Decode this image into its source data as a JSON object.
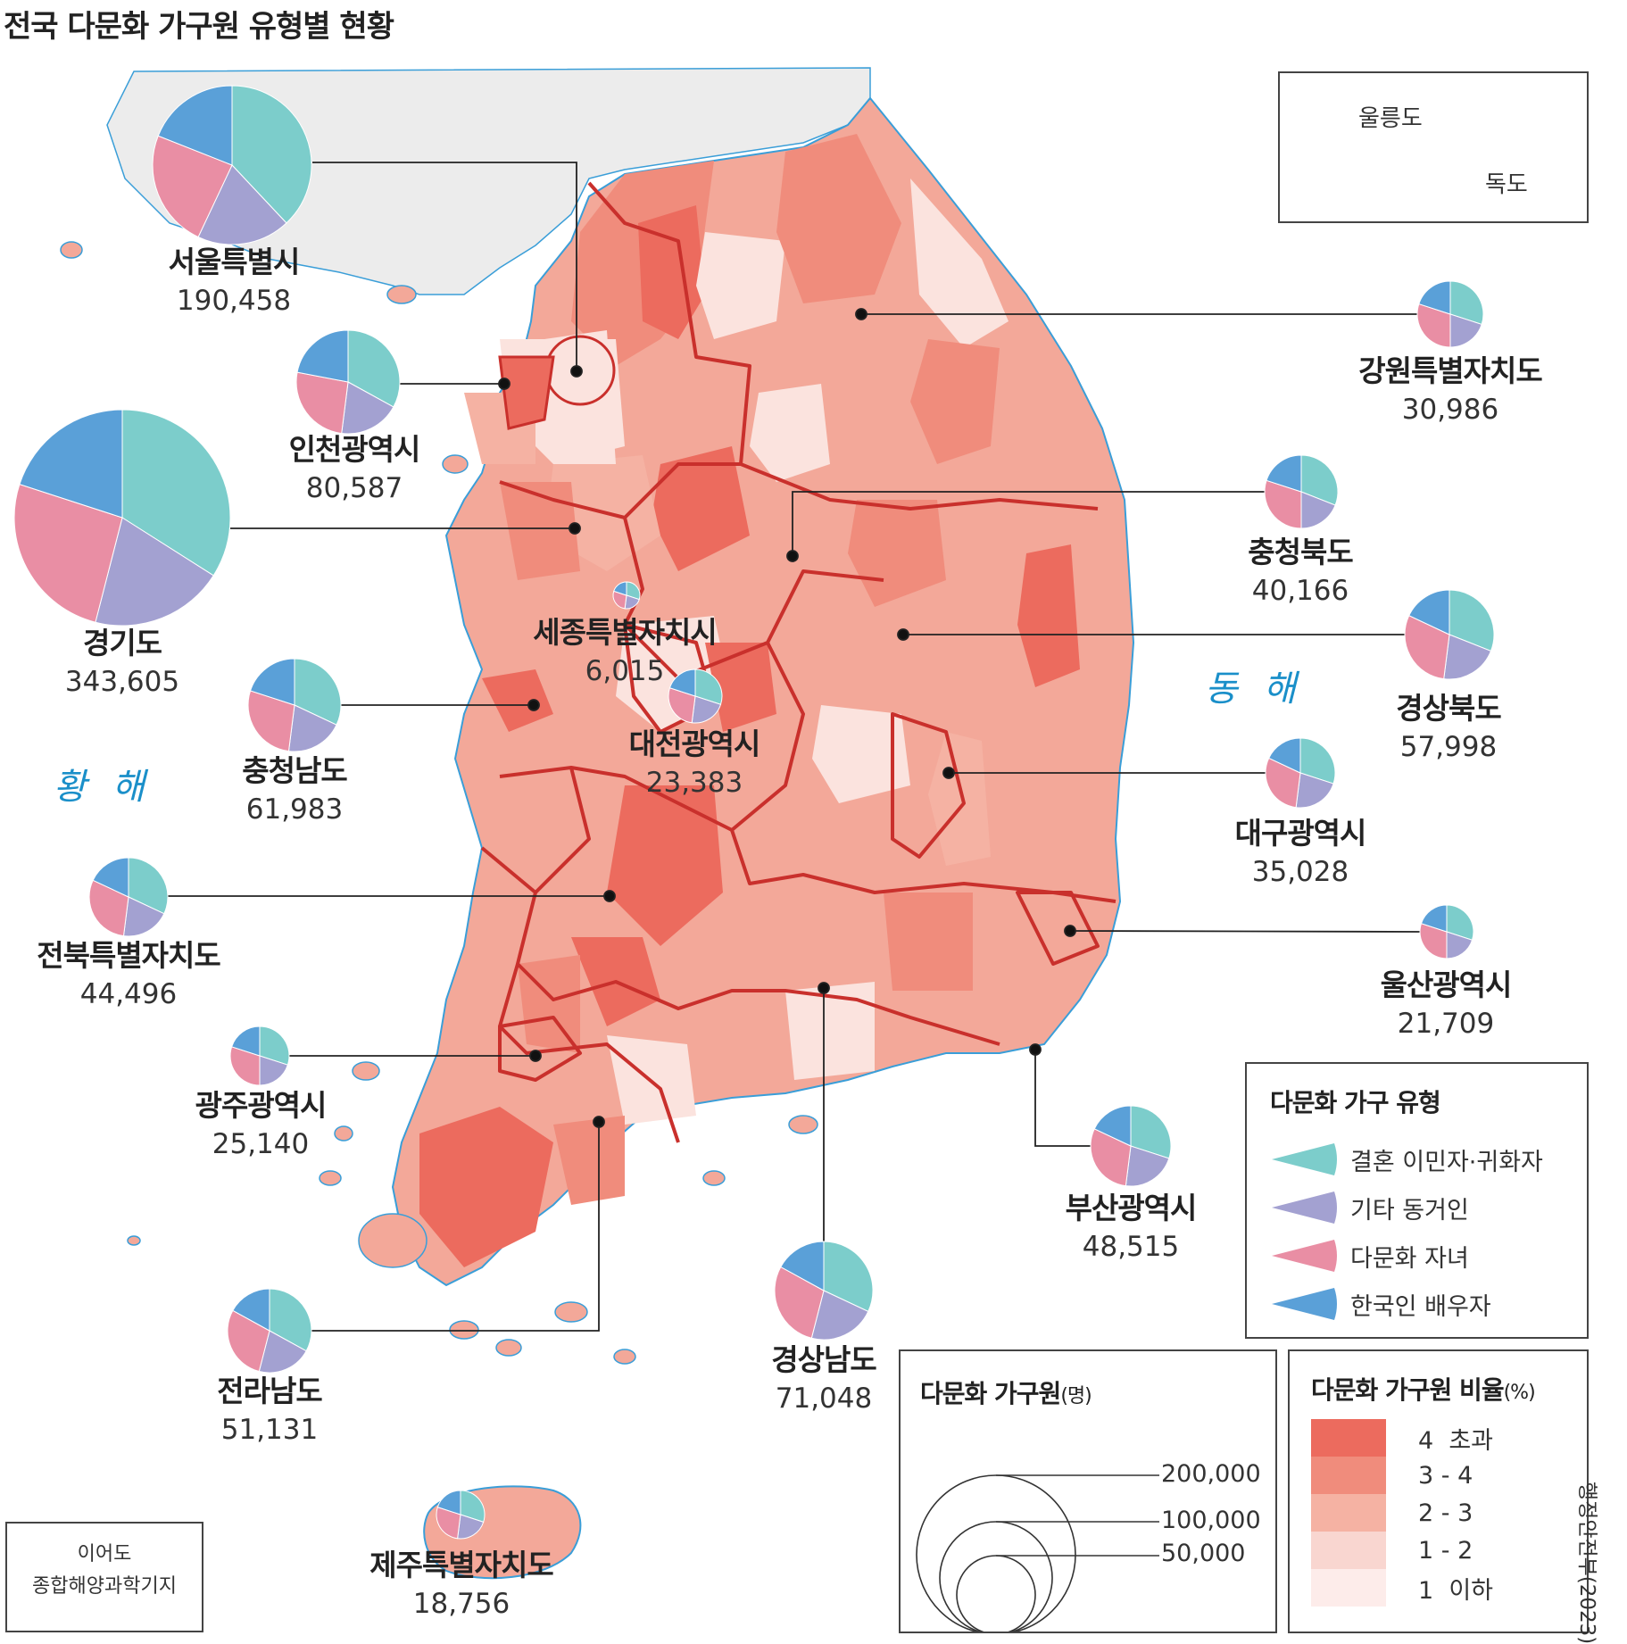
{
  "title": "전국 다문화 가구원 유형별 현황",
  "seas": {
    "east": "동 해",
    "west": "황 해"
  },
  "inset": {
    "ulleungdo": "울릉도",
    "dokdo": "독도"
  },
  "ieodo": {
    "line1": "이어도",
    "line2": "종합해양과학기지"
  },
  "source": "행정안전부(2023)",
  "legend_type": {
    "title": "다문화 가구 유형",
    "items": [
      {
        "label": "결혼 이민자·귀화자",
        "color": "#7ccdcb"
      },
      {
        "label": "기타 동거인",
        "color": "#a3a1d1"
      },
      {
        "label": "다문화 자녀",
        "color": "#e98ea4"
      },
      {
        "label": "한국인 배우자",
        "color": "#5aa0d8"
      }
    ]
  },
  "legend_size": {
    "title": "다문화 가구원",
    "unit": "(명)",
    "values": [
      "200,000",
      "100,000",
      "50,000"
    ]
  },
  "legend_ratio": {
    "title": "다문화 가구원 비율",
    "unit": "(%)",
    "classes": [
      {
        "label": "4  초과",
        "color": "#ec6b5e"
      },
      {
        "label": "3 - 4",
        "color": "#f08c7c"
      },
      {
        "label": "2 - 3",
        "color": "#f5b2a3"
      },
      {
        "label": "1 - 2",
        "color": "#f9d6d0"
      },
      {
        "label": "1  이하",
        "color": "#fdecea"
      }
    ]
  },
  "regions": [
    {
      "name": "서울특별시",
      "value": "190,458",
      "shares": [
        38,
        19,
        24,
        19
      ]
    },
    {
      "name": "인천광역시",
      "value": "80,587",
      "shares": [
        33,
        19,
        26,
        22
      ]
    },
    {
      "name": "경기도",
      "value": "343,605",
      "shares": [
        34,
        20,
        26,
        20
      ]
    },
    {
      "name": "세종특별자치시",
      "value": "6,015",
      "shares": [
        30,
        22,
        28,
        20
      ]
    },
    {
      "name": "충청남도",
      "value": "61,983",
      "shares": [
        32,
        20,
        28,
        20
      ]
    },
    {
      "name": "대전광역시",
      "value": "23,383",
      "shares": [
        30,
        22,
        28,
        20
      ]
    },
    {
      "name": "전북특별자치도",
      "value": "44,496",
      "shares": [
        32,
        20,
        30,
        18
      ]
    },
    {
      "name": "광주광역시",
      "value": "25,140",
      "shares": [
        30,
        20,
        30,
        20
      ]
    },
    {
      "name": "전라남도",
      "value": "51,131",
      "shares": [
        33,
        21,
        29,
        17
      ]
    },
    {
      "name": "제주특별자치도",
      "value": "18,756",
      "shares": [
        30,
        22,
        28,
        20
      ]
    },
    {
      "name": "강원특별자치도",
      "value": "30,986",
      "shares": [
        30,
        20,
        30,
        20
      ]
    },
    {
      "name": "충청북도",
      "value": "40,166",
      "shares": [
        31,
        19,
        30,
        20
      ]
    },
    {
      "name": "경상북도",
      "value": "57,998",
      "shares": [
        31,
        21,
        30,
        18
      ]
    },
    {
      "name": "대구광역시",
      "value": "35,028",
      "shares": [
        30,
        22,
        30,
        18
      ]
    },
    {
      "name": "울산광역시",
      "value": "21,709",
      "shares": [
        30,
        20,
        30,
        20
      ]
    },
    {
      "name": "부산광역시",
      "value": "48,515",
      "shares": [
        30,
        22,
        30,
        18
      ]
    },
    {
      "name": "경상남도",
      "value": "71,048",
      "shares": [
        32,
        22,
        29,
        17
      ]
    }
  ]
}
